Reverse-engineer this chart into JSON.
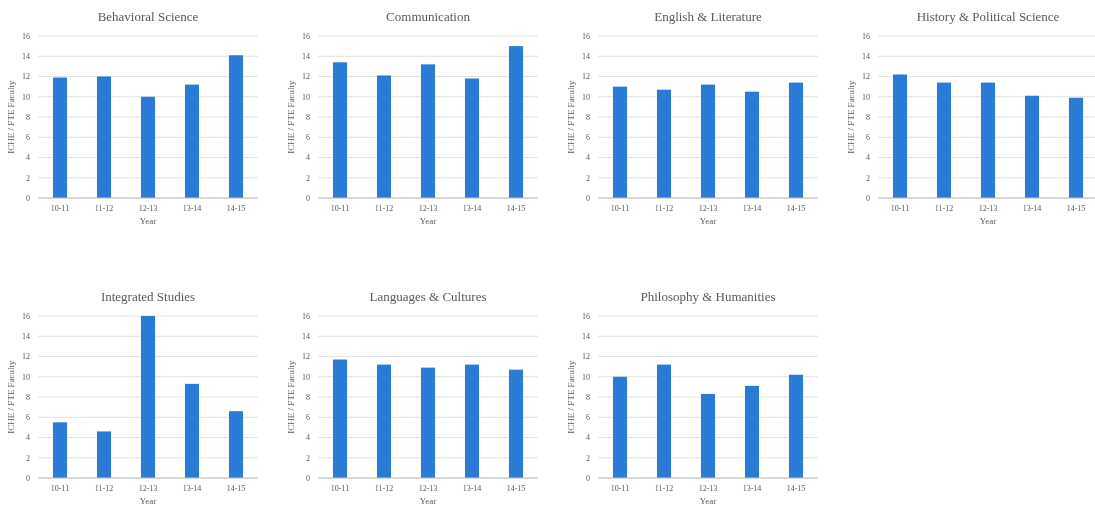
{
  "chart_data": [
    {
      "type": "bar",
      "title": "Behavioral Science",
      "xlabel": "Year",
      "ylabel": "ICHE / FTE Faculty",
      "categories": [
        "10-11",
        "11-12",
        "12-13",
        "13-14",
        "14-15"
      ],
      "values": [
        11.9,
        12.0,
        10.0,
        11.2,
        14.1
      ],
      "color": "#2a7bd6",
      "ylim": [
        0,
        16
      ],
      "yticks": [
        0,
        2,
        4,
        6,
        8,
        10,
        12,
        14,
        16
      ],
      "grid": "y"
    },
    {
      "type": "bar",
      "title": "Communication",
      "xlabel": "Year",
      "ylabel": "ICHE / FTE Faculty",
      "categories": [
        "10-11",
        "11-12",
        "12-13",
        "13-14",
        "14-15"
      ],
      "values": [
        13.4,
        12.1,
        13.2,
        11.8,
        15.0
      ],
      "color": "#2a7bd6",
      "ylim": [
        0,
        16
      ],
      "yticks": [
        0,
        2,
        4,
        6,
        8,
        10,
        12,
        14,
        16
      ],
      "grid": "y"
    },
    {
      "type": "bar",
      "title": "English & Literature",
      "xlabel": "Year",
      "ylabel": "ICHE / FTE Faculty",
      "categories": [
        "10-11",
        "11-12",
        "12-13",
        "13-14",
        "14-15"
      ],
      "values": [
        11.0,
        10.7,
        11.2,
        10.5,
        11.4
      ],
      "color": "#2a7bd6",
      "ylim": [
        0,
        16
      ],
      "yticks": [
        0,
        2,
        4,
        6,
        8,
        10,
        12,
        14,
        16
      ],
      "grid": "y"
    },
    {
      "type": "bar",
      "title": "History & Political Science",
      "xlabel": "Year",
      "ylabel": "ICHE / FTE Faculty",
      "categories": [
        "10-11",
        "11-12",
        "12-13",
        "13-14",
        "14-15"
      ],
      "values": [
        12.2,
        11.4,
        11.4,
        10.1,
        9.9
      ],
      "color": "#2a7bd6",
      "ylim": [
        0,
        16
      ],
      "yticks": [
        0,
        2,
        4,
        6,
        8,
        10,
        12,
        14,
        16
      ],
      "grid": "y"
    },
    {
      "type": "bar",
      "title": "Integrated Studies",
      "xlabel": "Year",
      "ylabel": "ICHE / FTE Faculty",
      "categories": [
        "10-11",
        "11-12",
        "12-13",
        "13-14",
        "14-15"
      ],
      "values": [
        5.5,
        4.6,
        16.0,
        9.3,
        6.6
      ],
      "color": "#2a7bd6",
      "ylim": [
        0,
        16
      ],
      "yticks": [
        0,
        2,
        4,
        6,
        8,
        10,
        12,
        14,
        16
      ],
      "grid": "y"
    },
    {
      "type": "bar",
      "title": "Languages & Cultures",
      "xlabel": "Year",
      "ylabel": "ICHE / FTE Faculty",
      "categories": [
        "10-11",
        "11-12",
        "12-13",
        "13-14",
        "14-15"
      ],
      "values": [
        11.7,
        11.2,
        10.9,
        11.2,
        10.7
      ],
      "color": "#2a7bd6",
      "ylim": [
        0,
        16
      ],
      "yticks": [
        0,
        2,
        4,
        6,
        8,
        10,
        12,
        14,
        16
      ],
      "grid": "y"
    },
    {
      "type": "bar",
      "title": "Philosophy & Humanities",
      "xlabel": "Year",
      "ylabel": "ICHE / FTE Faculty",
      "categories": [
        "10-11",
        "11-12",
        "12-13",
        "13-14",
        "14-15"
      ],
      "values": [
        10.0,
        11.2,
        8.3,
        9.1,
        10.2
      ],
      "color": "#2a7bd6",
      "ylim": [
        0,
        16
      ],
      "yticks": [
        0,
        2,
        4,
        6,
        8,
        10,
        12,
        14,
        16
      ],
      "grid": "y"
    }
  ]
}
